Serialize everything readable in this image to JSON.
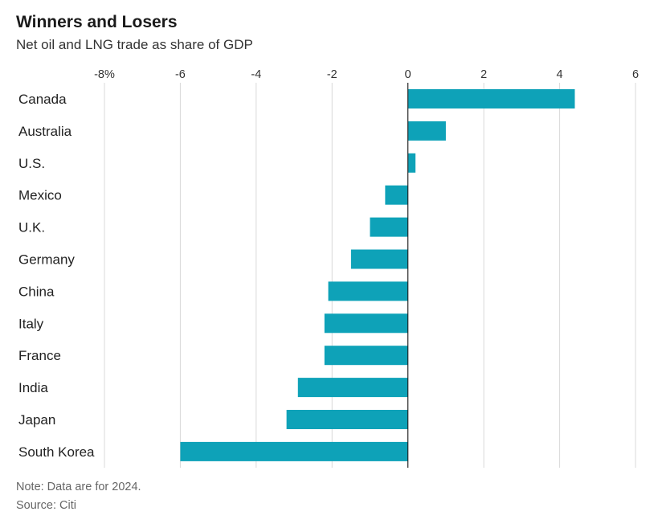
{
  "header": {
    "title": "Winners and Losers",
    "subtitle": "Net oil and LNG trade as share of GDP"
  },
  "footer": {
    "note": "Note: Data are for 2024.",
    "source": "Source: Citi"
  },
  "colors": {
    "bar": "#0ea2b8",
    "grid": "#d9d9d9",
    "zero_line": "#222222",
    "tick_text": "#333333",
    "category_text": "#222222"
  },
  "chart_data": {
    "type": "bar",
    "orientation": "horizontal",
    "title": "Winners and Losers",
    "subtitle": "Net oil and LNG trade as share of GDP",
    "categories": [
      "Canada",
      "Australia",
      "U.S.",
      "Mexico",
      "U.K.",
      "Germany",
      "China",
      "Italy",
      "France",
      "India",
      "Japan",
      "South Korea"
    ],
    "values": [
      4.4,
      1.0,
      0.2,
      -0.6,
      -1.0,
      -1.5,
      -2.1,
      -2.2,
      -2.2,
      -2.9,
      -3.2,
      -6.0
    ],
    "xlim": [
      -8,
      6
    ],
    "x_ticks": [
      -8,
      -6,
      -4,
      -2,
      0,
      2,
      4,
      6
    ],
    "x_tick_labels": [
      "-8%",
      "-6",
      "-4",
      "-2",
      "0",
      "2",
      "4",
      "6"
    ],
    "xlabel": "",
    "ylabel": "",
    "grid": true,
    "legend": "none"
  }
}
